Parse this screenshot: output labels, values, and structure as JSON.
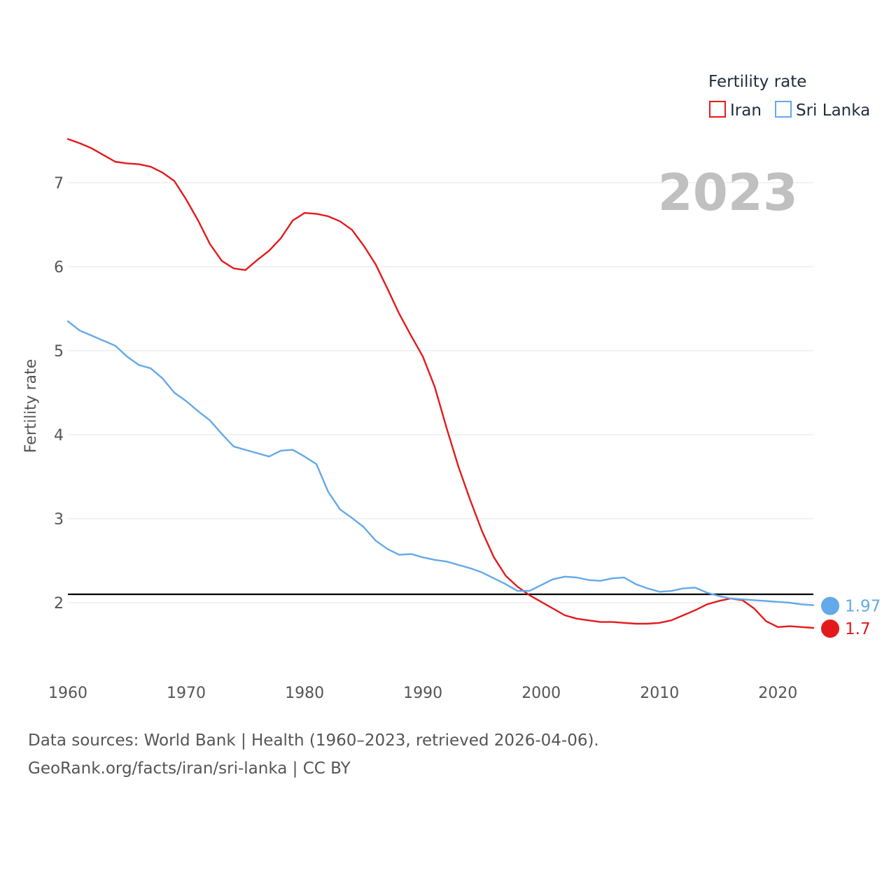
{
  "chart_data": {
    "type": "line",
    "title": "",
    "watermark_year": "2023",
    "xlabel": "",
    "ylabel": "Fertility rate",
    "xlim": [
      1960,
      2023
    ],
    "ylim": [
      1.3,
      7.55
    ],
    "x_ticks": [
      "1960",
      "1970",
      "1980",
      "1990",
      "2000",
      "2010",
      "2020"
    ],
    "y_ticks": [
      "2",
      "3",
      "4",
      "5",
      "6",
      "7"
    ],
    "reference_line": 2.1,
    "legend": {
      "title": "Fertility rate",
      "position": "top-right"
    },
    "series": [
      {
        "name": "Iran",
        "color": "#e31a1c",
        "end_label": "1.7",
        "x": [
          1960,
          1961,
          1962,
          1963,
          1964,
          1965,
          1966,
          1967,
          1968,
          1969,
          1970,
          1971,
          1972,
          1973,
          1974,
          1975,
          1976,
          1977,
          1978,
          1979,
          1980,
          1981,
          1982,
          1983,
          1984,
          1985,
          1986,
          1987,
          1988,
          1989,
          1990,
          1991,
          1992,
          1993,
          1994,
          1995,
          1996,
          1997,
          1998,
          1999,
          2000,
          2001,
          2002,
          2003,
          2004,
          2005,
          2006,
          2007,
          2008,
          2009,
          2010,
          2011,
          2012,
          2013,
          2014,
          2015,
          2016,
          2017,
          2018,
          2019,
          2020,
          2021,
          2022,
          2023
        ],
        "values": [
          7.52,
          7.47,
          7.41,
          7.33,
          7.25,
          7.23,
          7.22,
          7.19,
          7.12,
          7.02,
          6.8,
          6.55,
          6.27,
          6.07,
          5.98,
          5.96,
          6.08,
          6.19,
          6.34,
          6.55,
          6.64,
          6.63,
          6.6,
          6.54,
          6.44,
          6.25,
          6.03,
          5.74,
          5.44,
          5.18,
          4.93,
          4.57,
          4.08,
          3.62,
          3.22,
          2.85,
          2.54,
          2.32,
          2.19,
          2.09,
          2.01,
          1.93,
          1.85,
          1.81,
          1.79,
          1.77,
          1.77,
          1.76,
          1.75,
          1.75,
          1.76,
          1.79,
          1.85,
          1.91,
          1.98,
          2.02,
          2.05,
          2.03,
          1.93,
          1.78,
          1.71,
          1.72,
          1.71,
          1.7
        ]
      },
      {
        "name": "Sri Lanka",
        "color": "#64a9e8",
        "end_label": "1.97",
        "x": [
          1960,
          1961,
          1962,
          1963,
          1964,
          1965,
          1966,
          1967,
          1968,
          1969,
          1970,
          1971,
          1972,
          1973,
          1974,
          1975,
          1976,
          1977,
          1978,
          1979,
          1980,
          1981,
          1982,
          1983,
          1984,
          1985,
          1986,
          1987,
          1988,
          1989,
          1990,
          1991,
          1992,
          1993,
          1994,
          1995,
          1996,
          1997,
          1998,
          1999,
          2000,
          2001,
          2002,
          2003,
          2004,
          2005,
          2006,
          2007,
          2008,
          2009,
          2010,
          2011,
          2012,
          2013,
          2014,
          2015,
          2016,
          2017,
          2018,
          2019,
          2020,
          2021,
          2022,
          2023
        ],
        "values": [
          5.35,
          5.24,
          5.18,
          5.12,
          5.06,
          4.93,
          4.83,
          4.79,
          4.67,
          4.5,
          4.4,
          4.28,
          4.17,
          4.01,
          3.86,
          3.82,
          3.78,
          3.74,
          3.81,
          3.82,
          3.74,
          3.65,
          3.32,
          3.11,
          3.01,
          2.9,
          2.74,
          2.64,
          2.57,
          2.58,
          2.54,
          2.51,
          2.49,
          2.45,
          2.41,
          2.36,
          2.29,
          2.22,
          2.14,
          2.14,
          2.21,
          2.28,
          2.31,
          2.3,
          2.27,
          2.26,
          2.29,
          2.3,
          2.22,
          2.17,
          2.13,
          2.14,
          2.17,
          2.18,
          2.12,
          2.08,
          2.05,
          2.04,
          2.03,
          2.02,
          2.01,
          2.0,
          1.98,
          1.97
        ]
      }
    ]
  },
  "footer": {
    "source_line": "Data sources: World Bank | Health (1960–2023, retrieved 2026-04-06).",
    "link_line": "GeoRank.org/facts/iran/sri-lanka | CC BY"
  }
}
